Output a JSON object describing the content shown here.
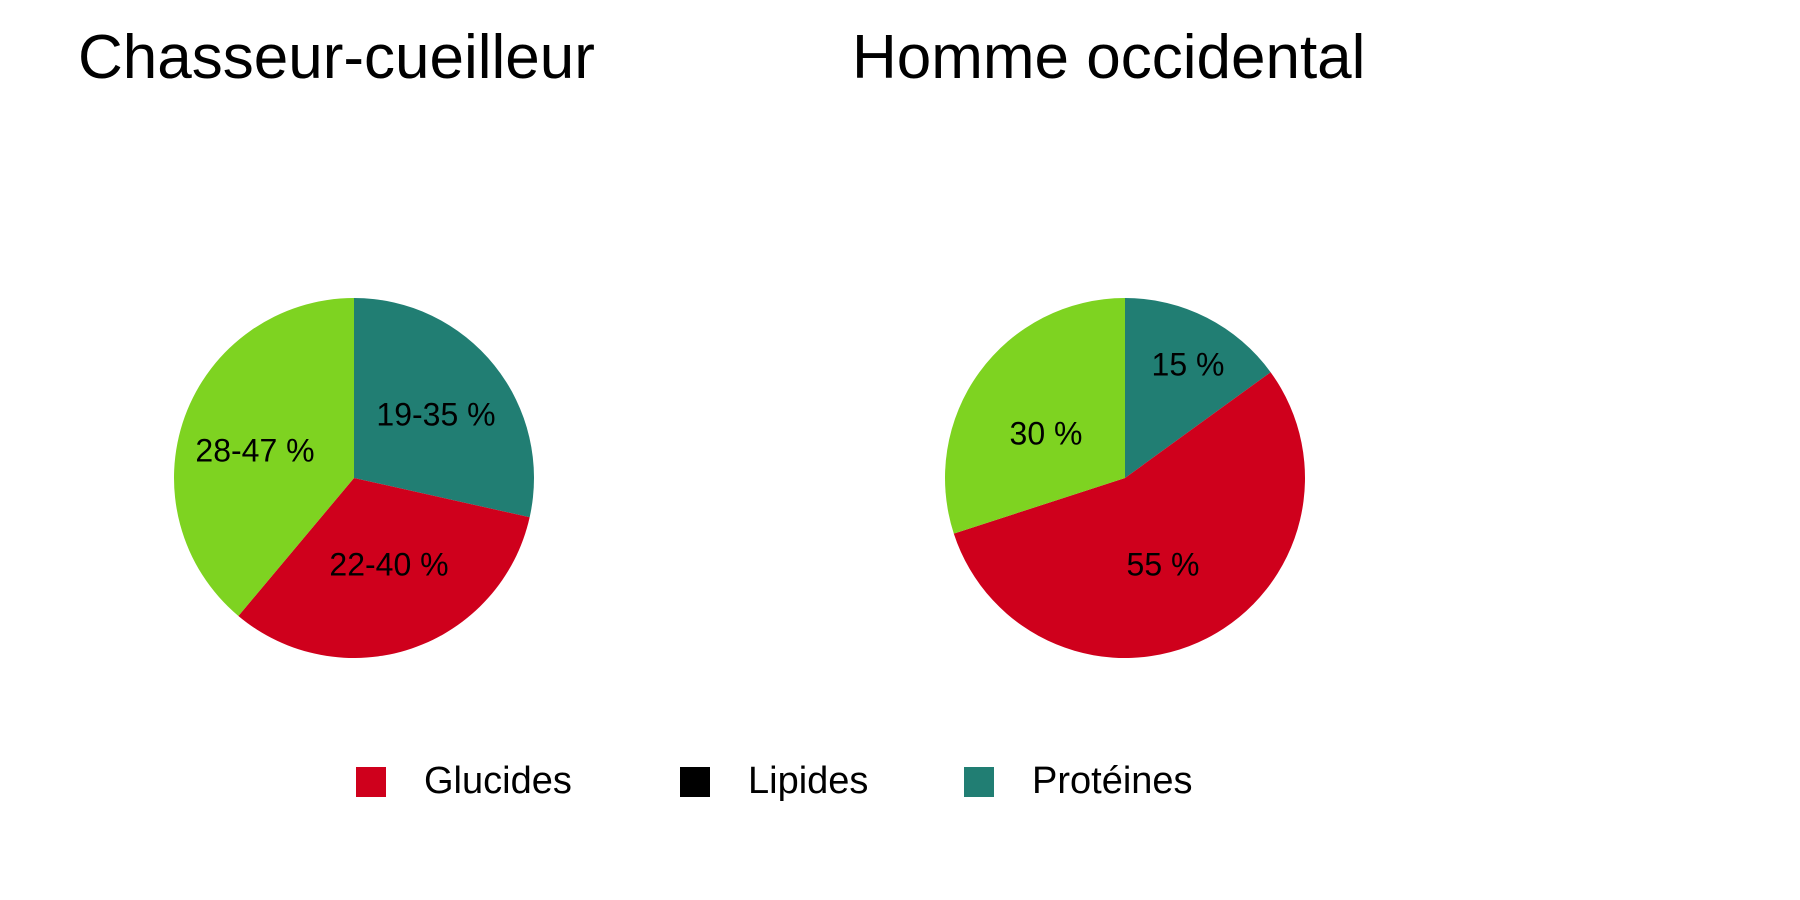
{
  "chart_data": [
    {
      "type": "pie",
      "title": "Chasseur-cueilleur",
      "slices": [
        {
          "category": "Protéines",
          "label": "19-35 %",
          "value": 28.5,
          "color": "#217e73"
        },
        {
          "category": "Glucides",
          "label": "22-40 %",
          "value": 32.6,
          "color": "#cf001c"
        },
        {
          "category": "",
          "label": "28-47 %",
          "value": 38.9,
          "color": "#7ed321"
        }
      ]
    },
    {
      "type": "pie",
      "title": "Homme occidental",
      "slices": [
        {
          "category": "Protéines",
          "label": "15 %",
          "value": 15,
          "color": "#217e73"
        },
        {
          "category": "Glucides",
          "label": "55 %",
          "value": 55,
          "color": "#cf001c"
        },
        {
          "category": "",
          "label": "30 %",
          "value": 30,
          "color": "#7ed321"
        }
      ]
    }
  ],
  "legend": [
    {
      "label": "Glucides",
      "color": "#cf001c"
    },
    {
      "label": "Lipides",
      "color": "#000000"
    },
    {
      "label": "Protéines",
      "color": "#217e73"
    }
  ]
}
